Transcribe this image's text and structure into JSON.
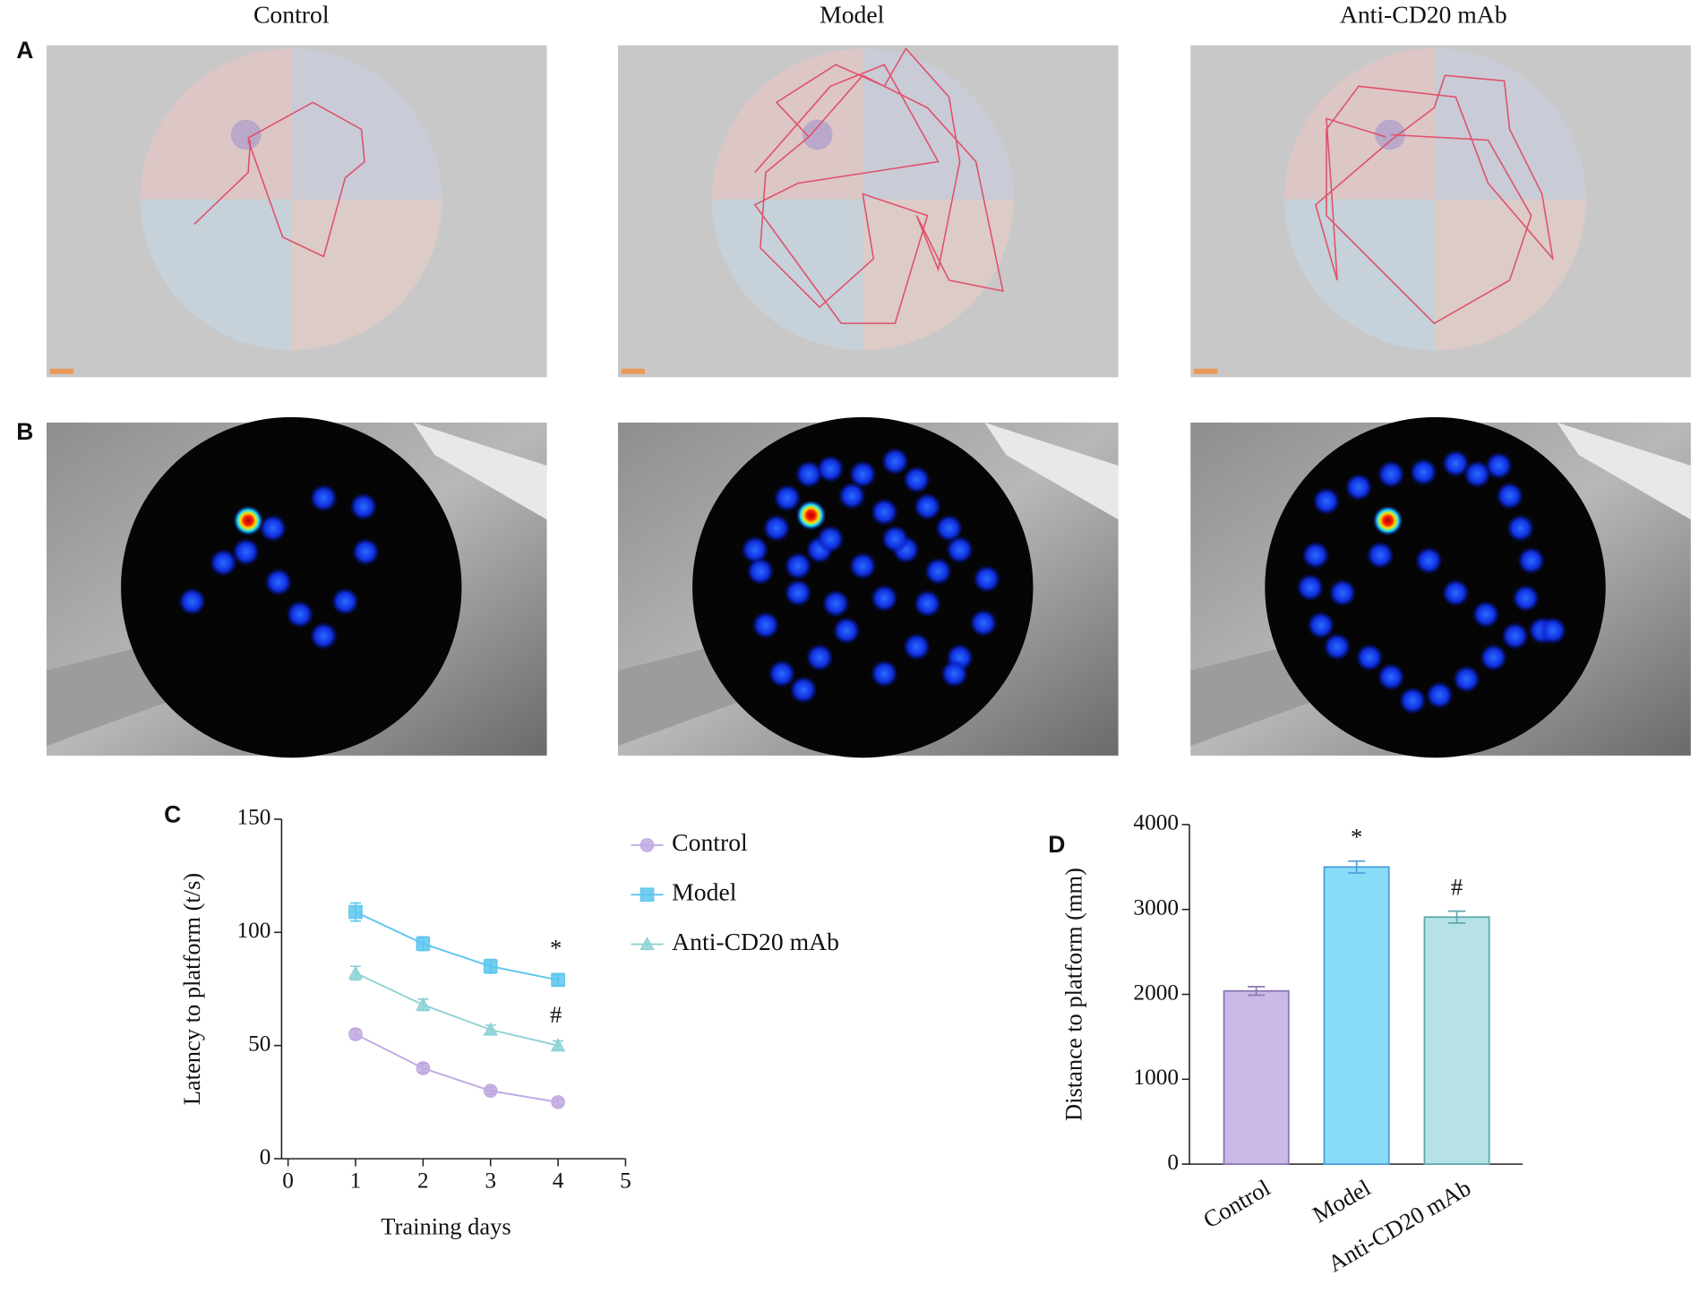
{
  "column_titles": [
    "Control",
    "Model",
    "Anti-CD20 mAb"
  ],
  "panel_labels": [
    "A",
    "B"
  ],
  "chart_data": [
    {
      "type": "line",
      "panel": "C",
      "x_label": "Training days",
      "y_label": "Latency to platform (t/s)",
      "x": [
        1,
        2,
        3,
        4
      ],
      "xlim": [
        0,
        5
      ],
      "xticks": [
        0,
        1,
        2,
        3,
        4,
        5
      ],
      "ylim": [
        0,
        150
      ],
      "yticks": [
        0,
        50,
        100,
        150
      ],
      "series": [
        {
          "name": "Control",
          "color": "#bfa9e0",
          "marker": "circle",
          "values": [
            55,
            40,
            30,
            25
          ],
          "errors": [
            2,
            2,
            1.5,
            1.5
          ]
        },
        {
          "name": "Model",
          "color": "#5cc6ef",
          "marker": "square",
          "values": [
            109,
            95,
            85,
            79
          ],
          "errors": [
            4,
            3,
            3,
            2.5
          ],
          "annotation": "*"
        },
        {
          "name": "Anti-CD20 mAb",
          "color": "#8ed2d6",
          "marker": "triangle",
          "values": [
            82,
            68,
            57,
            50
          ],
          "errors": [
            3,
            2.5,
            2,
            2
          ],
          "annotation": "#"
        }
      ]
    },
    {
      "type": "bar",
      "panel": "D",
      "y_label": "Distance to platform (mm)",
      "categories": [
        "Control",
        "Model",
        "Anti-CD20 mAb"
      ],
      "values": [
        2040,
        3500,
        2910
      ],
      "errors": [
        50,
        70,
        70
      ],
      "annotations": [
        null,
        "*",
        "#"
      ],
      "colors": [
        "#cbb9e7",
        "#88dcf8",
        "#b6e2e5"
      ],
      "edge_colors": [
        "#8b78b2",
        "#4a9ed8",
        "#5ea8ad"
      ],
      "ylim": [
        0,
        4000
      ],
      "yticks": [
        0,
        1000,
        2000,
        3000,
        4000
      ]
    }
  ]
}
